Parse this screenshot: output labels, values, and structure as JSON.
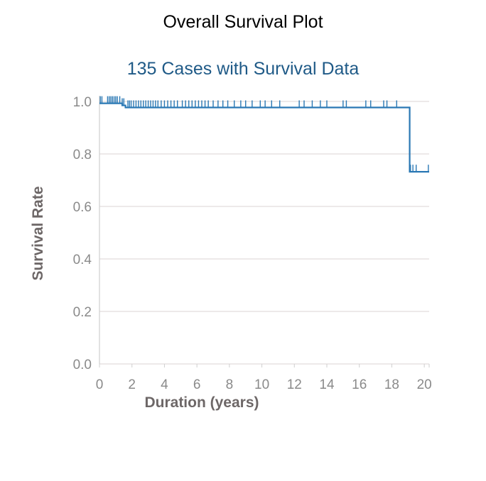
{
  "chart_data": {
    "type": "line",
    "title": "Overall Survival Plot",
    "subtitle": "135 Cases with Survival Data",
    "xlabel": "Duration (years)",
    "ylabel": "Survival Rate",
    "xlim": [
      0,
      20.3
    ],
    "ylim": [
      0,
      1
    ],
    "x_ticks": [
      "0",
      "2",
      "4",
      "6",
      "8",
      "10",
      "12",
      "14",
      "16",
      "18",
      "20"
    ],
    "y_ticks": [
      "0.0",
      "0.2",
      "0.4",
      "0.6",
      "0.8",
      "1.0"
    ],
    "grid": true,
    "series": [
      {
        "color": "#2a78b4",
        "steps": [
          {
            "x": 0.0,
            "y": 0.993
          },
          {
            "x": 1.4,
            "y": 0.985
          },
          {
            "x": 1.6,
            "y": 0.977
          },
          {
            "x": 19.1,
            "y": 0.732
          },
          {
            "x": 20.3,
            "y": 0.732
          }
        ],
        "censored_x": [
          0.05,
          0.15,
          0.5,
          0.6,
          0.7,
          0.8,
          0.9,
          1.0,
          1.1,
          1.25,
          1.4,
          1.5,
          1.75,
          1.85,
          1.95,
          2.1,
          2.25,
          2.4,
          2.55,
          2.7,
          2.85,
          3.0,
          3.15,
          3.3,
          3.45,
          3.6,
          3.8,
          4.0,
          4.2,
          4.4,
          4.6,
          4.8,
          5.1,
          5.3,
          5.5,
          5.7,
          5.9,
          6.1,
          6.3,
          6.5,
          6.7,
          7.0,
          7.3,
          7.6,
          7.9,
          8.3,
          8.7,
          9.0,
          9.4,
          9.9,
          10.2,
          10.6,
          11.1,
          12.3,
          12.6,
          13.1,
          13.6,
          14.0,
          15.0,
          15.2,
          16.4,
          16.7,
          17.5,
          17.7,
          18.3,
          19.15,
          19.3,
          19.5,
          20.25
        ]
      }
    ]
  }
}
